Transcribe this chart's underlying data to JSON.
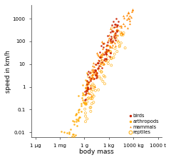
{
  "xlabel": "body mass",
  "ylabel": "speed in km/h",
  "bird_color": "#cc2200",
  "arthropod_color": "#ffaa00",
  "mammal_color": "#ff8800",
  "reptile_color": "#ffaa00",
  "background_color": "#ffffff",
  "xtick_vals_g": [
    1e-06,
    0.001,
    1,
    1000.0,
    1000000.0,
    1000000000.0
  ],
  "xtick_labels": [
    "1 μg",
    "1 mg",
    "1 g",
    "1 kg",
    "1000 kg",
    "1000 t"
  ],
  "ytick_vals": [
    0.01,
    0.1,
    1,
    10,
    100,
    1000
  ],
  "ytick_labels": [
    "0.01",
    "0.1",
    "1",
    "10",
    "100",
    "1000"
  ],
  "xlim_g": [
    3e-07,
    3000000000.0
  ],
  "ylim": [
    0.006,
    4000
  ],
  "legend_labels": [
    "birds",
    "arthropods",
    "mammals",
    "reptiles"
  ]
}
